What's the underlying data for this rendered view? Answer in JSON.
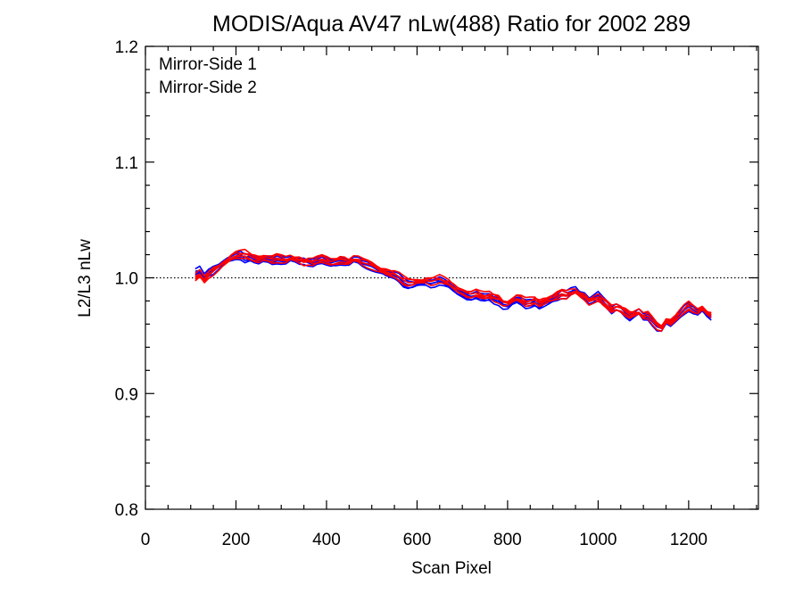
{
  "chart_data": {
    "type": "line",
    "title": "MODIS/Aqua AV47 nLw(488) Ratio for 2002 289",
    "xlabel": "Scan Pixel",
    "ylabel": "L2/L3 nLw",
    "xlim": [
      0,
      1354
    ],
    "ylim": [
      0.8,
      1.2
    ],
    "xticks": [
      "0",
      "200",
      "400",
      "600",
      "800",
      "1000",
      "1200"
    ],
    "xtick_values": [
      0,
      200,
      400,
      600,
      800,
      1000,
      1200
    ],
    "yticks": [
      "0.8",
      "0.9",
      "1.0",
      "1.1",
      "1.2"
    ],
    "ytick_values": [
      0.8,
      0.9,
      1.0,
      1.1,
      1.2
    ],
    "reference_line": {
      "y": 1.0,
      "style": "dotted"
    },
    "grid": false,
    "legend_position": "top-left",
    "x": [
      110,
      120,
      130,
      140,
      150,
      160,
      170,
      180,
      190,
      200,
      210,
      220,
      230,
      240,
      250,
      260,
      270,
      280,
      290,
      300,
      310,
      320,
      330,
      340,
      350,
      360,
      370,
      380,
      390,
      400,
      410,
      420,
      430,
      440,
      450,
      460,
      470,
      480,
      490,
      500,
      510,
      520,
      530,
      540,
      550,
      560,
      570,
      580,
      590,
      600,
      610,
      620,
      630,
      640,
      650,
      660,
      670,
      680,
      690,
      700,
      710,
      720,
      730,
      740,
      750,
      760,
      770,
      780,
      790,
      800,
      810,
      820,
      830,
      840,
      850,
      860,
      870,
      880,
      890,
      900,
      910,
      920,
      930,
      940,
      950,
      960,
      970,
      980,
      990,
      1000,
      1010,
      1020,
      1030,
      1040,
      1050,
      1060,
      1070,
      1080,
      1090,
      1100,
      1110,
      1120,
      1130,
      1140,
      1150,
      1160,
      1170,
      1180,
      1190,
      1200,
      1210,
      1220,
      1230,
      1240,
      1250
    ],
    "series": [
      {
        "name": "Mirror-Side 1",
        "color": "#0000ff",
        "values": [
          1.004,
          1.006,
          1.0,
          1.005,
          1.007,
          1.01,
          1.013,
          1.015,
          1.016,
          1.018,
          1.019,
          1.017,
          1.018,
          1.016,
          1.015,
          1.017,
          1.016,
          1.015,
          1.016,
          1.015,
          1.014,
          1.016,
          1.015,
          1.014,
          1.015,
          1.014,
          1.013,
          1.014,
          1.015,
          1.014,
          1.013,
          1.014,
          1.015,
          1.014,
          1.013,
          1.015,
          1.014,
          1.012,
          1.011,
          1.01,
          1.008,
          1.006,
          1.004,
          1.003,
          1.002,
          1.0,
          0.996,
          0.994,
          0.994,
          0.995,
          0.995,
          0.996,
          0.995,
          0.996,
          0.997,
          0.995,
          0.993,
          0.99,
          0.988,
          0.987,
          0.985,
          0.984,
          0.985,
          0.983,
          0.982,
          0.983,
          0.981,
          0.98,
          0.976,
          0.975,
          0.978,
          0.98,
          0.979,
          0.977,
          0.978,
          0.979,
          0.976,
          0.978,
          0.98,
          0.982,
          0.984,
          0.986,
          0.985,
          0.988,
          0.99,
          0.986,
          0.984,
          0.981,
          0.983,
          0.985,
          0.98,
          0.976,
          0.972,
          0.975,
          0.974,
          0.97,
          0.966,
          0.968,
          0.97,
          0.965,
          0.966,
          0.962,
          0.958,
          0.957,
          0.962,
          0.96,
          0.964,
          0.968,
          0.972,
          0.975,
          0.972,
          0.97,
          0.973,
          0.968,
          0.966
        ]
      },
      {
        "name": "Mirror-Side 2",
        "color": "#ff0000",
        "values": [
          1.0,
          1.003,
          0.998,
          1.003,
          1.006,
          1.009,
          1.012,
          1.014,
          1.017,
          1.019,
          1.02,
          1.021,
          1.019,
          1.017,
          1.016,
          1.018,
          1.017,
          1.016,
          1.017,
          1.016,
          1.015,
          1.017,
          1.016,
          1.015,
          1.014,
          1.015,
          1.014,
          1.015,
          1.016,
          1.015,
          1.014,
          1.015,
          1.016,
          1.015,
          1.014,
          1.016,
          1.015,
          1.013,
          1.012,
          1.011,
          1.009,
          1.007,
          1.005,
          1.004,
          1.003,
          1.001,
          0.998,
          0.996,
          0.996,
          0.997,
          0.997,
          0.998,
          0.997,
          0.998,
          0.999,
          0.997,
          0.995,
          0.992,
          0.99,
          0.989,
          0.987,
          0.986,
          0.987,
          0.985,
          0.984,
          0.985,
          0.983,
          0.982,
          0.979,
          0.978,
          0.98,
          0.982,
          0.981,
          0.979,
          0.98,
          0.981,
          0.978,
          0.98,
          0.982,
          0.983,
          0.985,
          0.986,
          0.985,
          0.987,
          0.988,
          0.985,
          0.983,
          0.98,
          0.982,
          0.983,
          0.979,
          0.976,
          0.973,
          0.975,
          0.974,
          0.971,
          0.968,
          0.969,
          0.97,
          0.966,
          0.967,
          0.963,
          0.959,
          0.957,
          0.963,
          0.961,
          0.965,
          0.969,
          0.973,
          0.976,
          0.973,
          0.971,
          0.974,
          0.97,
          0.968
        ]
      }
    ]
  }
}
